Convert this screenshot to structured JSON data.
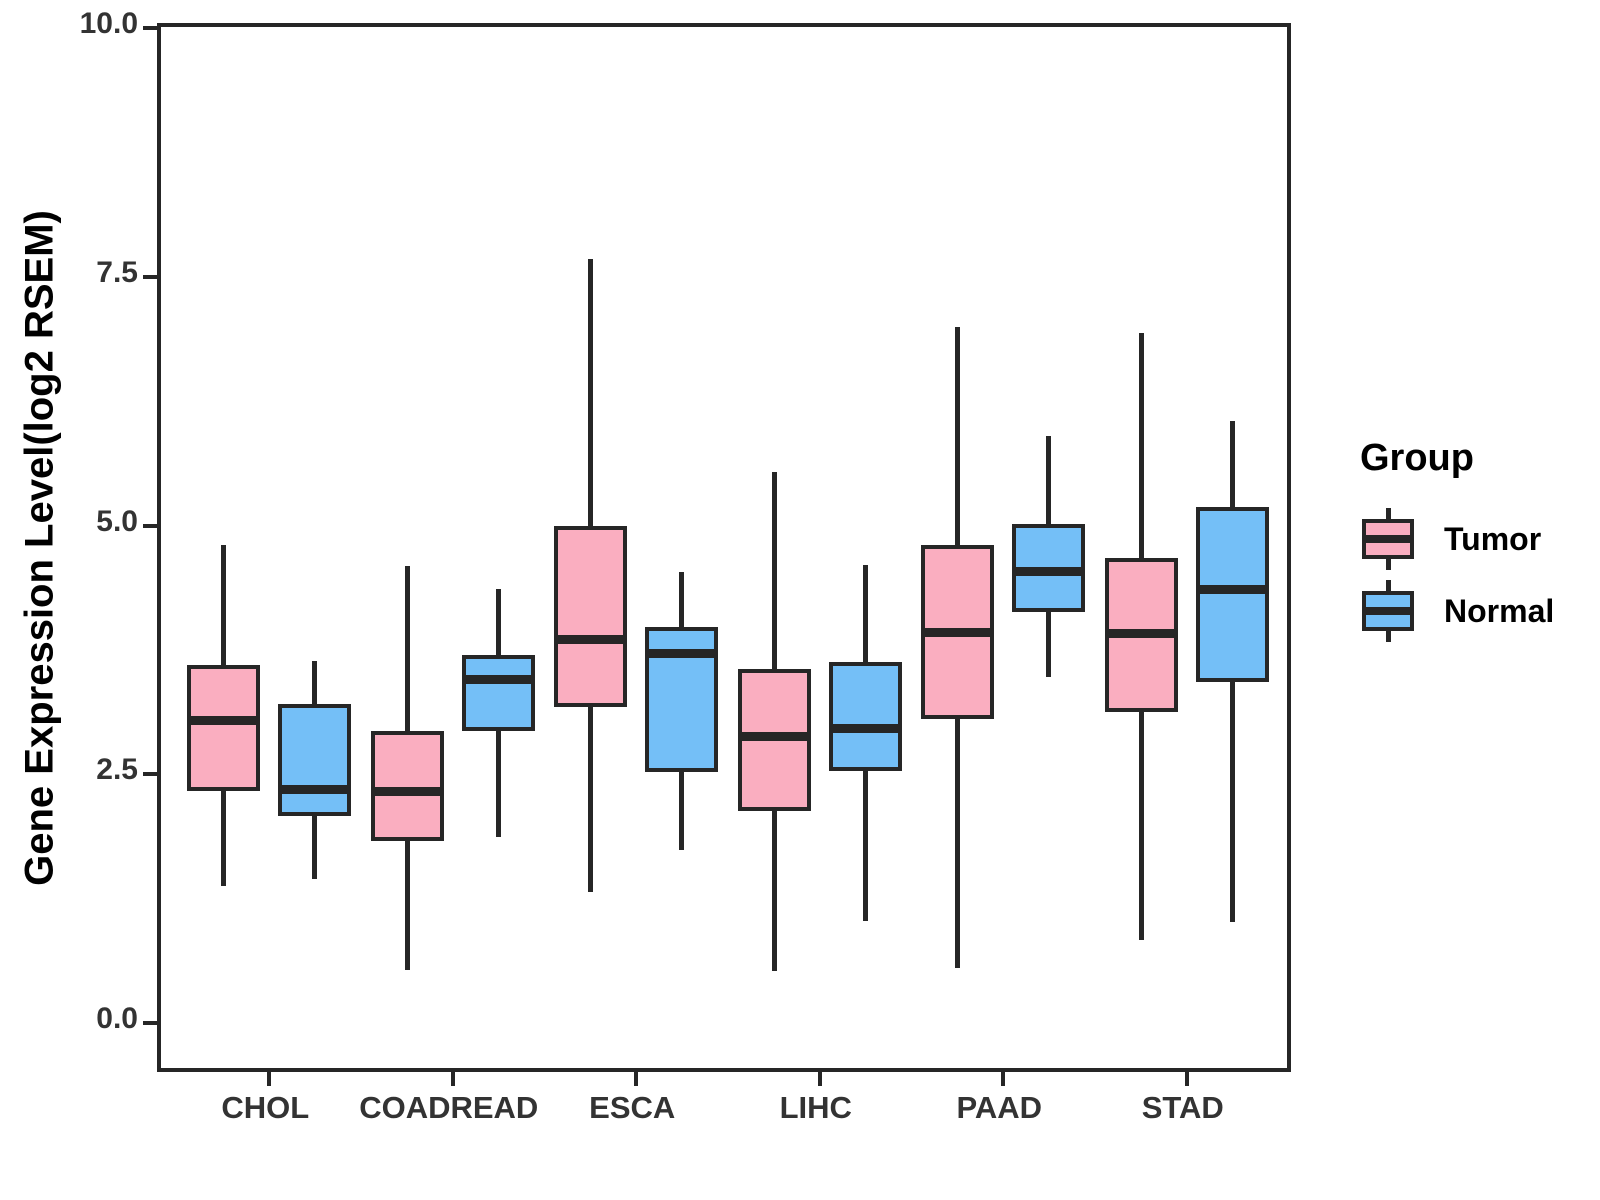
{
  "y_axis": {
    "label": "Gene Expression Level(log2 RSEM)",
    "ticks": [
      {
        "label": "0.0",
        "value": 0.0
      },
      {
        "label": "2.5",
        "value": 2.5
      },
      {
        "label": "5.0",
        "value": 5.0
      },
      {
        "label": "7.5",
        "value": 7.5
      },
      {
        "label": "10.0",
        "value": 10.0
      }
    ],
    "domain_min": -0.49,
    "domain_max": 10.05
  },
  "x_axis": {
    "categories": [
      "CHOL",
      "COADREAD",
      "ESCA",
      "LIHC",
      "PAAD",
      "STAD"
    ]
  },
  "legend": {
    "title": "Group",
    "items": [
      {
        "label": "Tumor",
        "color": "#FAAEC0"
      },
      {
        "label": "Normal",
        "color": "#74BFF7"
      }
    ]
  },
  "colors": {
    "tumor_fill": "#FAAEC0",
    "normal_fill": "#74BFF7",
    "stroke": "#262626"
  },
  "chart_data": {
    "type": "boxplot",
    "title": "",
    "xlabel": "",
    "ylabel": "Gene Expression Level(log2 RSEM)",
    "ylim": [
      -0.49,
      10.05
    ],
    "grid": false,
    "legend_position": "right",
    "categories": [
      "CHOL",
      "COADREAD",
      "ESCA",
      "LIHC",
      "PAAD",
      "STAD"
    ],
    "series": [
      {
        "name": "Tumor",
        "color": "#FAAEC0",
        "boxes": [
          {
            "category": "CHOL",
            "whisker_low": 1.42,
            "q1": 2.37,
            "median": 3.08,
            "q3": 3.64,
            "whisker_high": 4.85
          },
          {
            "category": "COADREAD",
            "whisker_low": 0.57,
            "q1": 1.87,
            "median": 2.37,
            "q3": 2.98,
            "whisker_high": 4.63
          },
          {
            "category": "ESCA",
            "whisker_low": 1.36,
            "q1": 3.22,
            "median": 3.9,
            "q3": 5.04,
            "whisker_high": 7.72
          },
          {
            "category": "LIHC",
            "whisker_low": 0.56,
            "q1": 2.17,
            "median": 2.92,
            "q3": 3.6,
            "whisker_high": 5.58
          },
          {
            "category": "PAAD",
            "whisker_low": 0.6,
            "q1": 3.1,
            "median": 3.97,
            "q3": 4.85,
            "whisker_high": 7.04
          },
          {
            "category": "STAD",
            "whisker_low": 0.88,
            "q1": 3.17,
            "median": 3.96,
            "q3": 4.71,
            "whisker_high": 6.98
          }
        ]
      },
      {
        "name": "Normal",
        "color": "#74BFF7",
        "boxes": [
          {
            "category": "CHOL",
            "whisker_low": 1.49,
            "q1": 2.12,
            "median": 2.39,
            "q3": 3.25,
            "whisker_high": 3.68
          },
          {
            "category": "COADREAD",
            "whisker_low": 1.91,
            "q1": 2.98,
            "median": 3.49,
            "q3": 3.74,
            "whisker_high": 4.4
          },
          {
            "category": "ESCA",
            "whisker_low": 1.78,
            "q1": 2.56,
            "median": 3.76,
            "q3": 4.02,
            "whisker_high": 4.57
          },
          {
            "category": "LIHC",
            "whisker_low": 1.07,
            "q1": 2.57,
            "median": 3.0,
            "q3": 3.67,
            "whisker_high": 4.64
          },
          {
            "category": "PAAD",
            "whisker_low": 3.52,
            "q1": 4.17,
            "median": 4.58,
            "q3": 5.06,
            "whisker_high": 5.94
          },
          {
            "category": "STAD",
            "whisker_low": 1.06,
            "q1": 3.47,
            "median": 4.4,
            "q3": 5.23,
            "whisker_high": 6.09
          }
        ]
      }
    ]
  }
}
